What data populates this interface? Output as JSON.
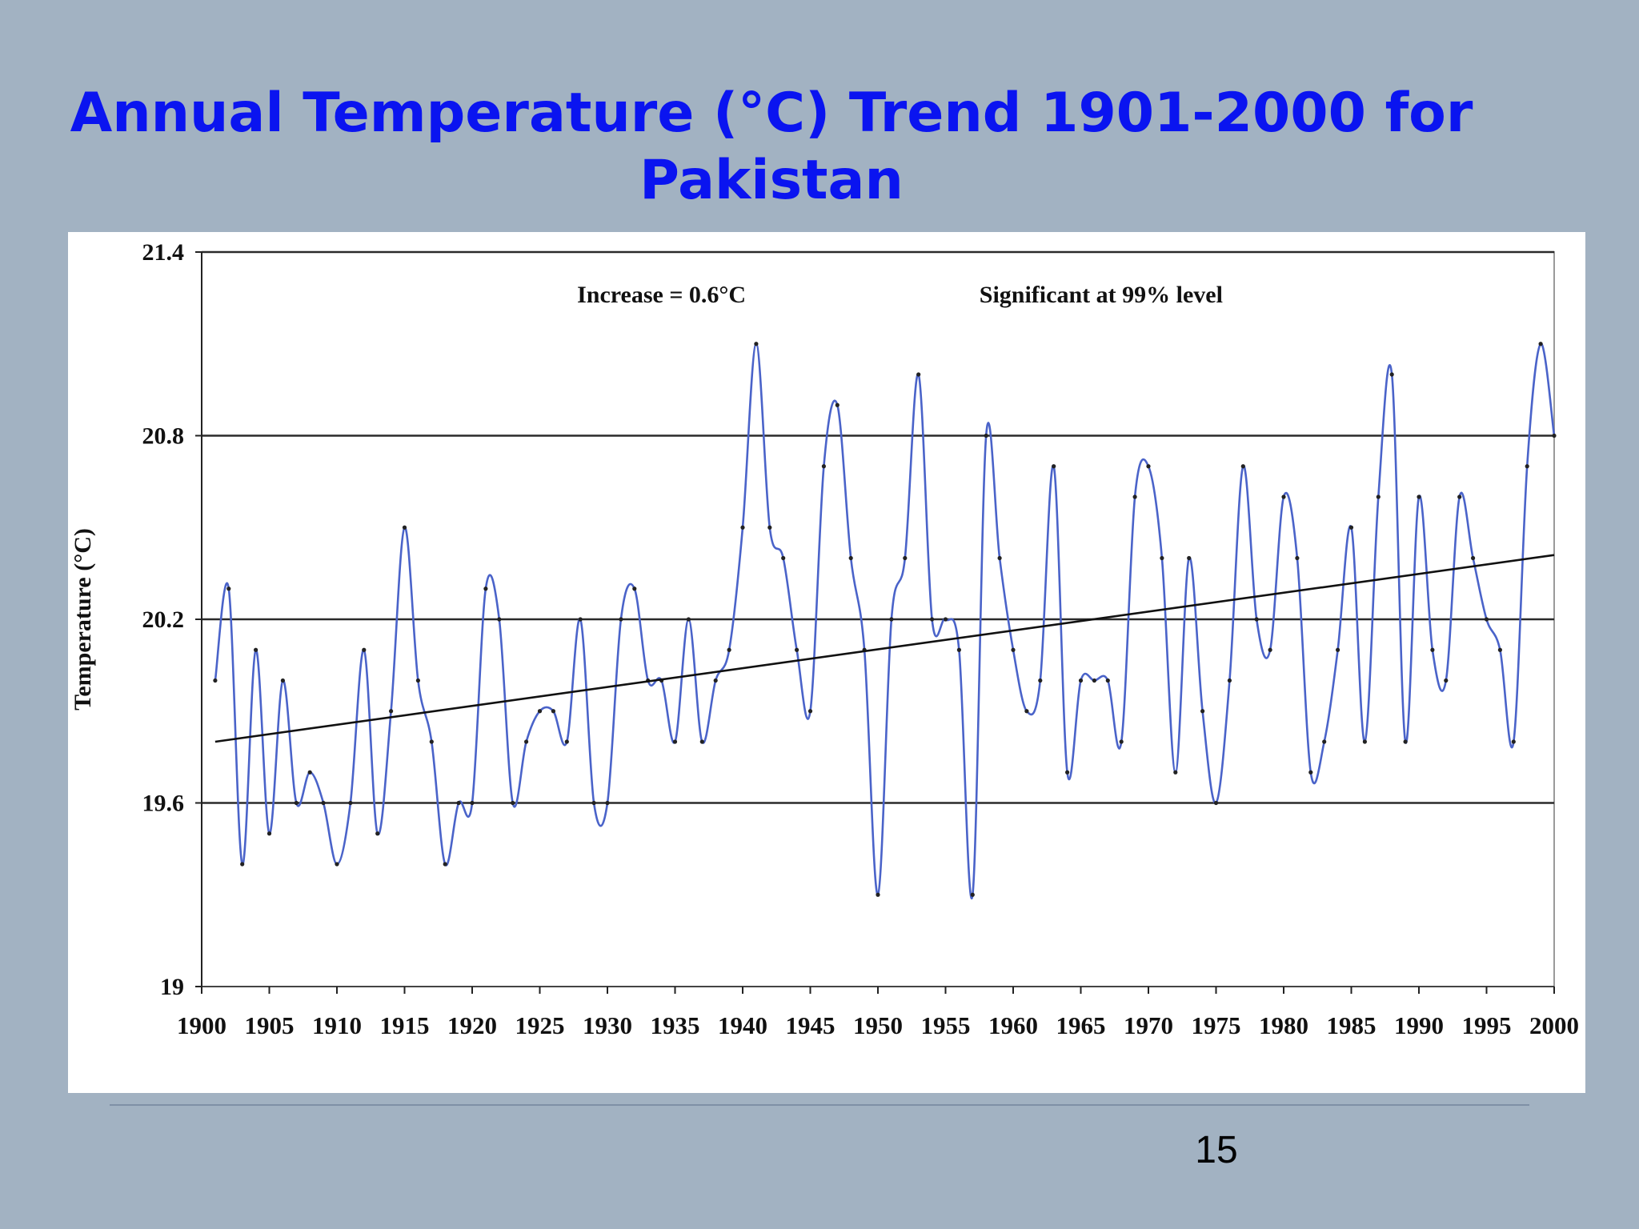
{
  "slide": {
    "title_line1": "Annual Temperature (°C) Trend 1901-2000 for",
    "title_line2": "Pakistan",
    "page_number": "15"
  },
  "chart_data": {
    "type": "line",
    "ylabel": "Temperature (°C)",
    "ylim": [
      19,
      21.4
    ],
    "yticks": [
      "19",
      "19.6",
      "20.2",
      "20.8",
      "21.4"
    ],
    "xlim": [
      1900,
      2000
    ],
    "xticks": [
      "1900",
      "1905",
      "1910",
      "1915",
      "1920",
      "1925",
      "1930",
      "1935",
      "1940",
      "1945",
      "1950",
      "1955",
      "1960",
      "1965",
      "1970",
      "1975",
      "1980",
      "1985",
      "1990",
      "1995",
      "2000"
    ],
    "grid": "horizontal",
    "annotations": [
      "Increase = 0.6°C",
      "Significant at 99% level"
    ],
    "series": [
      {
        "color": "#4a63c9",
        "x": [
          1901,
          1902,
          1903,
          1904,
          1905,
          1906,
          1907,
          1908,
          1909,
          1910,
          1911,
          1912,
          1913,
          1914,
          1915,
          1916,
          1917,
          1918,
          1919,
          1920,
          1921,
          1922,
          1923,
          1924,
          1925,
          1926,
          1927,
          1928,
          1929,
          1930,
          1931,
          1932,
          1933,
          1934,
          1935,
          1936,
          1937,
          1938,
          1939,
          1940,
          1941,
          1942,
          1943,
          1944,
          1945,
          1946,
          1947,
          1948,
          1949,
          1950,
          1951,
          1952,
          1953,
          1954,
          1955,
          1956,
          1957,
          1958,
          1959,
          1960,
          1961,
          1962,
          1963,
          1964,
          1965,
          1966,
          1967,
          1968,
          1969,
          1970,
          1971,
          1972,
          1973,
          1974,
          1975,
          1976,
          1977,
          1978,
          1979,
          1980,
          1981,
          1982,
          1983,
          1984,
          1985,
          1986,
          1987,
          1988,
          1989,
          1990,
          1991,
          1992,
          1993,
          1994,
          1995,
          1996,
          1997,
          1998,
          1999,
          2000
        ],
        "y": [
          20.0,
          20.3,
          19.4,
          20.1,
          19.5,
          20.0,
          19.6,
          19.7,
          19.6,
          19.4,
          19.6,
          20.1,
          19.5,
          19.9,
          20.5,
          20.0,
          19.8,
          19.4,
          19.6,
          19.6,
          20.3,
          20.2,
          19.6,
          19.8,
          19.9,
          19.9,
          19.8,
          20.2,
          19.6,
          19.6,
          20.2,
          20.3,
          20.0,
          20.0,
          19.8,
          20.2,
          19.8,
          20.0,
          20.1,
          20.5,
          21.1,
          20.5,
          20.4,
          20.1,
          19.9,
          20.7,
          20.9,
          20.4,
          20.1,
          19.3,
          20.2,
          20.4,
          21.0,
          20.2,
          20.2,
          20.1,
          19.3,
          20.8,
          20.4,
          20.1,
          19.9,
          20.0,
          20.7,
          19.7,
          20.0,
          20.0,
          20.0,
          19.8,
          20.6,
          20.7,
          20.4,
          19.7,
          20.4,
          19.9,
          19.6,
          20.0,
          20.7,
          20.2,
          20.1,
          20.6,
          20.4,
          19.7,
          19.8,
          20.1,
          20.5,
          19.8,
          20.6,
          21.0,
          19.8,
          20.6,
          20.1,
          20.0,
          20.6,
          20.4,
          20.2,
          20.1,
          19.8,
          20.7,
          21.1,
          20.8
        ]
      },
      {
        "color": "#111111",
        "x": [
          1901,
          2000
        ],
        "y": [
          19.8,
          20.41
        ]
      }
    ]
  }
}
